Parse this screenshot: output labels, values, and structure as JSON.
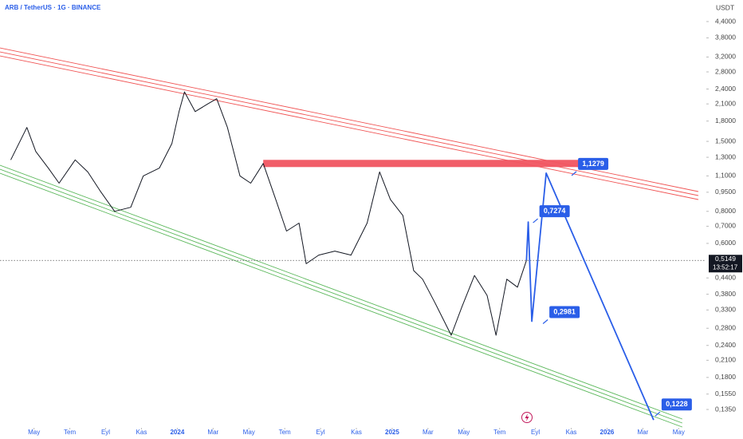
{
  "chart_data": {
    "type": "line",
    "title": "ARB / TetherUS · 1G · BINANCE",
    "currency": "USDT",
    "log_scale": true,
    "xlim": [
      -1.9,
      37.5
    ],
    "xticks": [
      {
        "value": 0,
        "label": "May"
      },
      {
        "value": 2,
        "label": "Tem"
      },
      {
        "value": 4,
        "label": "Eyl"
      },
      {
        "value": 6,
        "label": "Kas"
      },
      {
        "value": 8,
        "label": "2024"
      },
      {
        "value": 10,
        "label": "Mar"
      },
      {
        "value": 12,
        "label": "May"
      },
      {
        "value": 14,
        "label": "Tem"
      },
      {
        "value": 16,
        "label": "Eyl"
      },
      {
        "value": 18,
        "label": "Kas"
      },
      {
        "value": 20,
        "label": "2025"
      },
      {
        "value": 22,
        "label": "Mar"
      },
      {
        "value": 24,
        "label": "May"
      },
      {
        "value": 26,
        "label": "Tem"
      },
      {
        "value": 28,
        "label": "Eyl"
      },
      {
        "value": 30,
        "label": "Kas"
      },
      {
        "value": 32,
        "label": "2026"
      },
      {
        "value": 34,
        "label": "Mar"
      },
      {
        "value": 36,
        "label": "May"
      }
    ],
    "ylim": [
      0.135,
      4.4
    ],
    "yticks": [
      {
        "value": 4.4,
        "label": "4,4000"
      },
      {
        "value": 3.8,
        "label": "3,8000"
      },
      {
        "value": 3.2,
        "label": "3,2000"
      },
      {
        "value": 2.8,
        "label": "2,8000"
      },
      {
        "value": 2.4,
        "label": "2,4000"
      },
      {
        "value": 2.1,
        "label": "2,1000"
      },
      {
        "value": 1.8,
        "label": "1,8000"
      },
      {
        "value": 1.5,
        "label": "1,5000"
      },
      {
        "value": 1.3,
        "label": "1,3000"
      },
      {
        "value": 1.1,
        "label": "1,1000"
      },
      {
        "value": 0.95,
        "label": "0,9500"
      },
      {
        "value": 0.8,
        "label": "0,8000"
      },
      {
        "value": 0.7,
        "label": "0,7000"
      },
      {
        "value": 0.6,
        "label": "0,6000"
      },
      {
        "value": 0.44,
        "label": "0,4400"
      },
      {
        "value": 0.38,
        "label": "0,3800"
      },
      {
        "value": 0.33,
        "label": "0,3300"
      },
      {
        "value": 0.28,
        "label": "0,2800"
      },
      {
        "value": 0.24,
        "label": "0,2400"
      },
      {
        "value": 0.21,
        "label": "0,2100"
      },
      {
        "value": 0.18,
        "label": "0,1800"
      },
      {
        "value": 0.155,
        "label": "0,1550"
      },
      {
        "value": 0.135,
        "label": "0,1350"
      }
    ],
    "last_price": {
      "value": 0.5149,
      "label": "0,5149"
    },
    "countdown": "13:52:17",
    "series": [
      {
        "color": "#131722",
        "x": [
          -1.3,
          -0.4,
          0.1,
          0.8,
          1.4,
          2.3,
          3.0,
          3.7,
          4.5,
          5.4,
          6.1,
          7.0,
          7.7,
          8.1,
          8.4,
          9.0,
          9.7,
          10.2,
          10.8,
          11.5,
          12.1,
          12.8,
          13.5,
          14.1,
          14.8,
          15.2,
          15.9,
          16.8,
          17.7,
          18.6,
          19.3,
          19.9,
          20.6,
          21.2,
          21.7,
          22.4,
          23.3,
          23.9,
          24.6,
          25.3,
          25.8,
          26.4,
          27.0,
          27.5
        ],
        "values": [
          1.27,
          1.7,
          1.37,
          1.18,
          1.03,
          1.27,
          1.14,
          0.96,
          0.8,
          0.83,
          1.1,
          1.18,
          1.47,
          1.96,
          2.34,
          1.96,
          2.1,
          2.2,
          1.7,
          1.1,
          1.03,
          1.23,
          0.89,
          0.67,
          0.72,
          0.5,
          0.54,
          0.56,
          0.54,
          0.72,
          1.14,
          0.89,
          0.77,
          0.47,
          0.435,
          0.351,
          0.263,
          0.34,
          0.45,
          0.376,
          0.263,
          0.435,
          0.405,
          0.515
        ]
      },
      {
        "color": "#2a5ee8",
        "x": [
          27.5,
          27.6,
          27.8,
          28.6,
          34.6
        ],
        "values": [
          0.515,
          0.7274,
          0.2981,
          1.1279,
          0.1228
        ],
        "value_labels": [
          null,
          "0,7274",
          "0,2981",
          "1,1279",
          "0,1228"
        ]
      }
    ],
    "upper_channel": {
      "color": "#f05454",
      "x": [
        -1.9,
        37.1
      ],
      "values": [
        3.35,
        0.922
      ]
    },
    "lower_channel": {
      "color": "#5cb85c",
      "x": [
        -1.9,
        36.2
      ],
      "values": [
        1.168,
        0.1195
      ]
    },
    "resistance_zone": {
      "color": "#f05460",
      "x": [
        12.8,
        30.6
      ],
      "value": 1.23
    }
  }
}
